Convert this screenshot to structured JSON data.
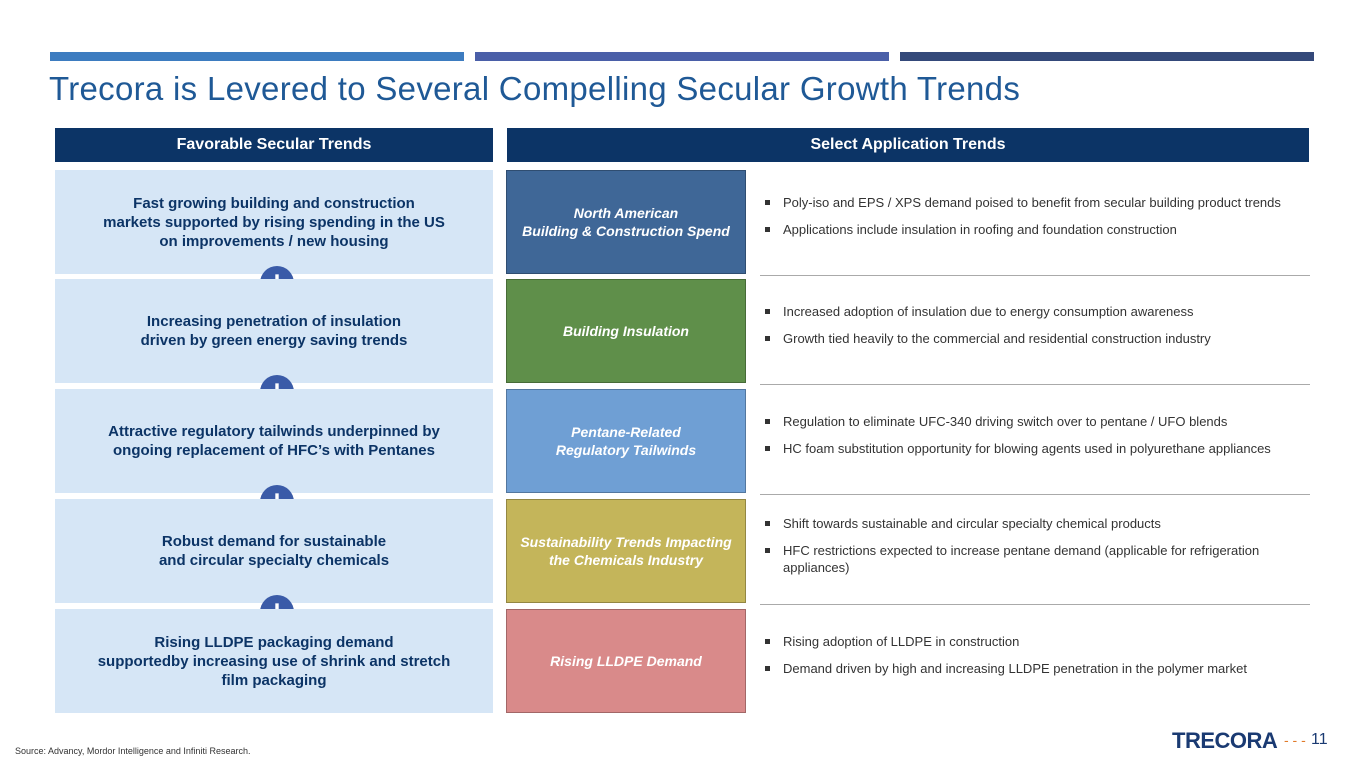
{
  "header": {
    "title": "Trecora is Levered to Several Compelling Secular Growth Trends"
  },
  "columns": {
    "left_header": "Favorable Secular Trends",
    "right_header": "Select Application Trends"
  },
  "rows": [
    {
      "trend": [
        "Fast growing building and construction",
        "markets supported by rising spending in the US",
        "on improvements / new housing"
      ],
      "application": [
        "North American",
        "Building & Construction Spend"
      ],
      "bullets": [
        [
          "Poly-iso and EPS / XPS demand poised to benefit from secular building product trends"
        ],
        [
          "Applications include insulation in roofing and foundation construction"
        ]
      ]
    },
    {
      "trend": [
        "Increasing penetration of insulation",
        "driven by green energy saving trends"
      ],
      "application": [
        "Building Insulation"
      ],
      "bullets": [
        [
          "Increased adoption of insulation due to energy consumption awareness"
        ],
        [
          "Growth tied heavily to the commercial and residential construction industry"
        ]
      ]
    },
    {
      "trend": [
        "Attractive regulatory tailwinds underpinned by",
        "ongoing replacement of HFC’s with Pentanes"
      ],
      "application": [
        "Pentane-Related",
        "Regulatory Tailwinds"
      ],
      "bullets": [
        [
          "Regulation to eliminate UFC-340 driving switch over to pentane / UFO blends"
        ],
        [
          "HC foam substitution opportunity for blowing agents used in polyurethane appliances"
        ]
      ]
    },
    {
      "trend": [
        "Robust demand for sustainable",
        "and circular specialty chemicals"
      ],
      "application": [
        "Sustainability Trends Impacting",
        "the Chemicals Industry"
      ],
      "bullets": [
        [
          "Shift towards sustainable and circular specialty chemical products"
        ],
        [
          "HFC restrictions expected to increase pentane demand (applicable for refrigeration",
          "appliances)"
        ]
      ]
    },
    {
      "trend": [
        "Rising LLDPE packaging demand",
        "supportedby increasing use of shrink and stretch",
        "film packaging"
      ],
      "application": [
        "Rising LLDPE Demand"
      ],
      "bullets": [
        [
          "Rising adoption of LLDPE in construction"
        ],
        [
          "Demand driven by high and increasing LLDPE penetration in the polymer market"
        ]
      ]
    }
  ],
  "footer": {
    "source": "Source: Advancy, Mordor Intelligence and Infiniti Research.",
    "logo": "TRECORA",
    "page": 11
  }
}
